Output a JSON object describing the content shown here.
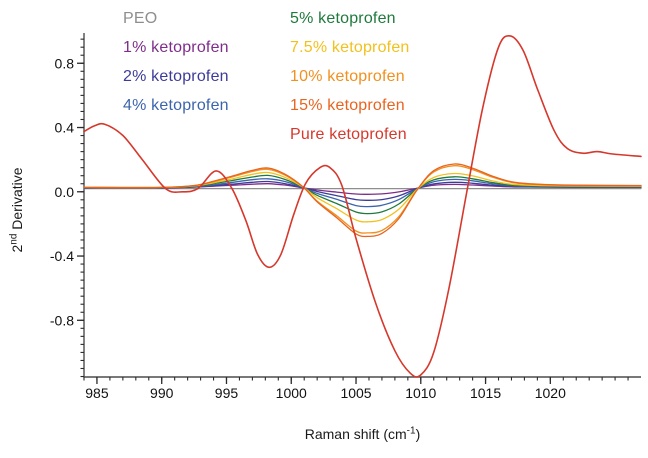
{
  "figure": {
    "background": "#ffffff"
  },
  "legend": {
    "columns": [
      {
        "items": [
          {
            "label": "PEO",
            "color": "#8e8e8e"
          },
          {
            "label": "1% ketoprofen",
            "color": "#7f2d8a"
          },
          {
            "label": "2% ketoprofen",
            "color": "#3d3b99"
          },
          {
            "label": "4% ketoprofen",
            "color": "#3c64ad"
          }
        ]
      },
      {
        "items": [
          {
            "label": "5% ketoprofen",
            "color": "#1f7a3c"
          },
          {
            "label": "7.5% ketoprofen",
            "color": "#f2c11e"
          },
          {
            "label": "10% ketoprofen",
            "color": "#f0901f"
          },
          {
            "label": "15% ketoprofen",
            "color": "#e8641f"
          },
          {
            "label": "Pure ketoprofen",
            "color": "#d6382c"
          }
        ]
      }
    ]
  },
  "axes": {
    "x_label": {
      "base": "Raman shift (cm",
      "sup": "-1",
      "rest": ")"
    },
    "y_label": {
      "base": "2",
      "sup": "nd",
      "rest": " Derivative"
    },
    "line_color": "#4d4d4d",
    "tick_color": "#2b2b2b",
    "tick_label_color": "#111111"
  },
  "chart_data": {
    "type": "line",
    "title": "",
    "xlabel": "Raman shift (cm-1)",
    "ylabel": "2nd Derivative",
    "xlim": [
      984,
      1027
    ],
    "ylim": [
      -1.153,
      1.007
    ],
    "grid": false,
    "legend_position": "top-left",
    "x_ticks": {
      "values": [
        985,
        990,
        995,
        1000,
        1005,
        1010,
        1015,
        1020
      ],
      "labels": [
        "985",
        "990",
        "995",
        "1000",
        "1005",
        "1010",
        "1015",
        "1020"
      ]
    },
    "y_ticks": {
      "values": [
        -0.8,
        -0.4,
        0,
        0.4,
        0.8
      ],
      "labels": [
        "-0.8",
        "-0.4",
        "0.0",
        "0.4",
        "0.8"
      ]
    },
    "x_minor": {
      "from": 984,
      "to": 1026,
      "step": 1
    },
    "y_minor": {
      "from": -1.15,
      "to": 0.95,
      "step": 0.05
    },
    "x": [
      984,
      990,
      992.5,
      994,
      995.5,
      997,
      998.2,
      999.5,
      1000.9,
      1002,
      1003.5,
      1005,
      1005.9,
      1007,
      1008.3,
      1009.7,
      1011,
      1012.6,
      1014,
      1015.5,
      1017,
      1019,
      1022,
      1027
    ],
    "series": [
      {
        "name": "PEO",
        "color": "#8e8e8e",
        "width": 1.2,
        "x": [
          984,
          1027
        ],
        "y": [
          0.02,
          0.02
        ]
      },
      {
        "name": "1% ketoprofen",
        "color": "#7f2d8a",
        "width": 1.3,
        "y": [
          0.023,
          0.023,
          0.029,
          0.035,
          0.041,
          0.047,
          0.05,
          0.042,
          0.025,
          0.011,
          -0.002,
          -0.014,
          -0.016,
          -0.013,
          -0.001,
          0.022,
          0.041,
          0.046,
          0.042,
          0.036,
          0.031,
          0.029,
          0.028,
          0.028
        ]
      },
      {
        "name": "2% ketoprofen",
        "color": "#3d3b99",
        "width": 1.3,
        "y": [
          0.026,
          0.026,
          0.03,
          0.039,
          0.048,
          0.059,
          0.064,
          0.051,
          0.026,
          0.002,
          -0.024,
          -0.049,
          -0.053,
          -0.049,
          -0.026,
          0.02,
          0.049,
          0.059,
          0.053,
          0.041,
          0.034,
          0.031,
          0.029,
          0.029
        ]
      },
      {
        "name": "4% ketoprofen",
        "color": "#3c64ad",
        "width": 1.3,
        "y": [
          0.026,
          0.026,
          0.032,
          0.043,
          0.059,
          0.075,
          0.081,
          0.064,
          0.027,
          -0.01,
          -0.047,
          -0.086,
          -0.092,
          -0.084,
          -0.049,
          0.018,
          0.062,
          0.077,
          0.068,
          0.05,
          0.038,
          0.033,
          0.031,
          0.031
        ]
      },
      {
        "name": "5% ketoprofen",
        "color": "#1f7a3c",
        "width": 1.3,
        "y": [
          0.026,
          0.026,
          0.034,
          0.05,
          0.071,
          0.092,
          0.102,
          0.077,
          0.028,
          -0.022,
          -0.073,
          -0.126,
          -0.136,
          -0.125,
          -0.076,
          0.016,
          0.074,
          0.093,
          0.081,
          0.058,
          0.041,
          0.035,
          0.033,
          0.033
        ]
      },
      {
        "name": "7.5% ketoprofen",
        "color": "#f2c11e",
        "width": 1.3,
        "y": [
          0.027,
          0.027,
          0.036,
          0.056,
          0.081,
          0.109,
          0.12,
          0.09,
          0.029,
          -0.037,
          -0.105,
          -0.176,
          -0.187,
          -0.173,
          -0.109,
          0.014,
          0.089,
          0.114,
          0.099,
          0.069,
          0.047,
          0.039,
          0.036,
          0.035
        ]
      },
      {
        "name": "10% ketoprofen",
        "color": "#f0901f",
        "width": 1.3,
        "y": [
          0.027,
          0.027,
          0.038,
          0.063,
          0.094,
          0.126,
          0.14,
          0.104,
          0.03,
          -0.058,
          -0.149,
          -0.244,
          -0.256,
          -0.241,
          -0.155,
          0.011,
          0.123,
          0.162,
          0.138,
          0.092,
          0.059,
          0.045,
          0.04,
          0.038
        ]
      },
      {
        "name": "15% ketoprofen",
        "color": "#e8641f",
        "width": 1.3,
        "y": [
          0.027,
          0.027,
          0.039,
          0.066,
          0.099,
          0.133,
          0.148,
          0.11,
          0.031,
          -0.063,
          -0.161,
          -0.262,
          -0.278,
          -0.259,
          -0.167,
          0.01,
          0.131,
          0.173,
          0.147,
          0.098,
          0.062,
          0.047,
          0.041,
          0.039
        ]
      },
      {
        "name": "Pure ketoprofen",
        "color": "#d6382c",
        "width": 1.6,
        "x": [
          984,
          984.8,
          985.6,
          987,
          988.5,
          990.3,
          991.6,
          992.8,
          994.2,
          995.4,
          996.5,
          997.4,
          998.3,
          999.2,
          1000.2,
          1001.1,
          1002.2,
          1003,
          1003.9,
          1005,
          1006.5,
          1008,
          1009.2,
          1010,
          1011,
          1012.2,
          1013.6,
          1014.8,
          1016,
          1016.9,
          1017.9,
          1019,
          1020.3,
          1021.3,
          1022.5,
          1023.6,
          1024.8,
          1027
        ],
        "y": [
          0.375,
          0.41,
          0.42,
          0.35,
          0.2,
          0.02,
          0.0,
          0.02,
          0.13,
          0.023,
          -0.18,
          -0.39,
          -0.47,
          -0.39,
          -0.14,
          0.05,
          0.15,
          0.15,
          0.04,
          -0.29,
          -0.69,
          -0.99,
          -1.13,
          -1.14,
          -1.0,
          -0.59,
          0.02,
          0.53,
          0.9,
          0.97,
          0.88,
          0.64,
          0.38,
          0.27,
          0.24,
          0.25,
          0.235,
          0.22
        ]
      }
    ]
  }
}
